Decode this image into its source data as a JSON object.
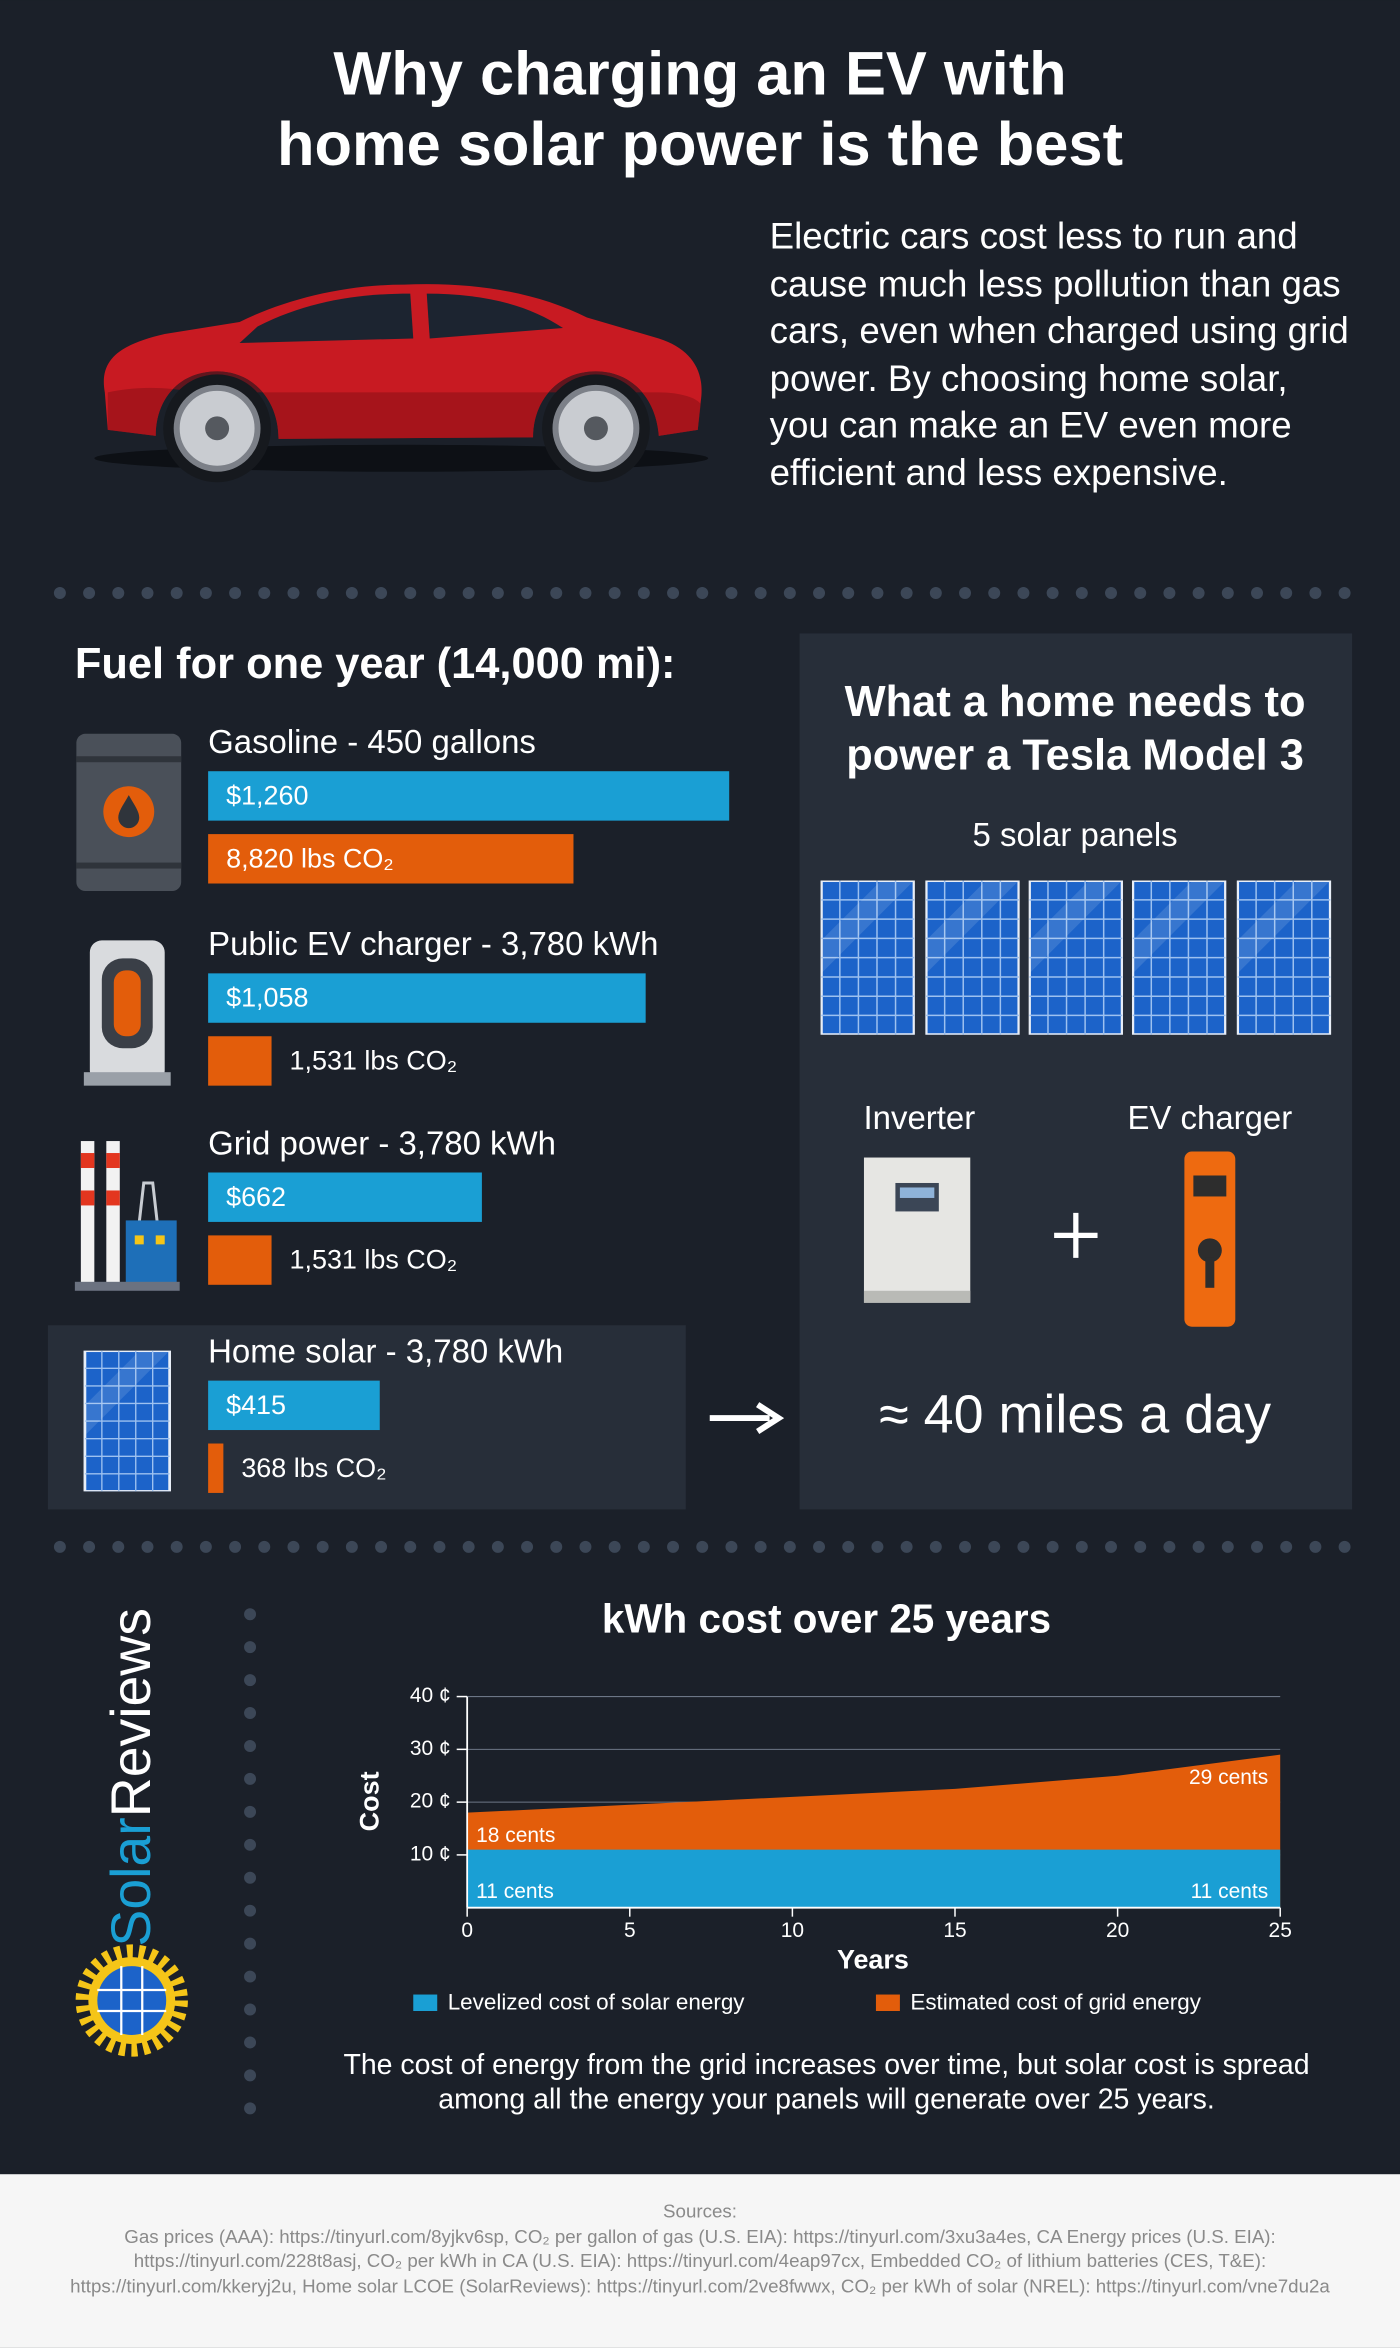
{
  "header": {
    "title": "Why charging an EV with home solar power is the best"
  },
  "intro": "Electric cars cost less to run and cause much less pollution than gas cars, even when charged using grid power. By choosing home solar, you can make an EV even more efficient and less expensive.",
  "chart_data": [
    {
      "type": "bar",
      "orientation": "horizontal",
      "title": "Fuel for one year (14,000 mi):",
      "categories": [
        "Gasoline - 450 gallons",
        "Public EV charger - 3,780 kWh",
        "Grid power - 3,780 kWh",
        "Home solar - 3,780 kWh"
      ],
      "series": [
        {
          "color": "#1a9fd4",
          "values": [
            1260,
            1058,
            662,
            415
          ],
          "value_labels": [
            "$1,260",
            "$1,058",
            "$662",
            "$415"
          ]
        },
        {
          "color": "#e35d0b",
          "values": [
            8820,
            1531,
            1531,
            368
          ],
          "value_labels": [
            "8,820 lbs CO₂",
            "1,531 lbs CO₂",
            "1,531 lbs CO₂",
            "368 lbs CO₂"
          ]
        }
      ]
    },
    {
      "type": "area",
      "title": "kWh cost over 25 years",
      "x": [
        0,
        5,
        10,
        15,
        20,
        25
      ],
      "xlim": [
        0,
        25
      ],
      "xticks": [
        0,
        5,
        10,
        15,
        20,
        25
      ],
      "xlabel": "Years",
      "ylabel": "Cost",
      "ylim": [
        0,
        40
      ],
      "yticks": [
        {
          "value": 10,
          "label": "10 ¢"
        },
        {
          "value": 20,
          "label": "20 ¢"
        },
        {
          "value": 30,
          "label": "30 ¢"
        },
        {
          "value": 40,
          "label": "40 ¢"
        }
      ],
      "grid": true,
      "legend": "bottom",
      "series": [
        {
          "name": "Levelized cost of solar energy",
          "color": "#1a9fd4",
          "values": [
            11,
            11,
            11,
            11,
            11,
            11
          ],
          "value_labels": [
            "11 cents",
            null,
            null,
            null,
            null,
            "11 cents"
          ]
        },
        {
          "name": "Estimated cost of grid energy",
          "color": "#e35d0b",
          "values": [
            18,
            19.5,
            21,
            22.5,
            25,
            29
          ],
          "value_labels": [
            "18 cents",
            null,
            null,
            null,
            null,
            "29 cents"
          ]
        }
      ],
      "caption": "The cost of energy from the grid increases over time, but solar cost is spread among all the energy your panels will generate over 25 years."
    }
  ],
  "home": {
    "title": "What a home needs to power a Tesla Model 3",
    "panels_label": "5 solar panels",
    "inverter": "Inverter",
    "charger": "EV charger",
    "result": "≈ 40 miles a day"
  },
  "brand": {
    "first": "Solar",
    "second": "Reviews"
  },
  "sources": {
    "title": "Sources:",
    "text": "Gas prices (AAA): https://tinyurl.com/8yjkv6sp,  CO₂ per gallon of gas (U.S. EIA): https://tinyurl.com/3xu3a4es,  CA Energy prices (U.S. EIA): https://tinyurl.com/228t8asj,  CO₂ per kWh in CA (U.S. EIA): https://tinyurl.com/4eap97cx,  Embedded CO₂ of lithium batteries (CES, T&E): https://tinyurl.com/kkeryj2u,  Home solar LCOE (SolarReviews): https://tinyurl.com/2ve8fwwx,  CO₂ per kWh of solar (NREL): https://tinyurl.com/vne7du2a"
  }
}
